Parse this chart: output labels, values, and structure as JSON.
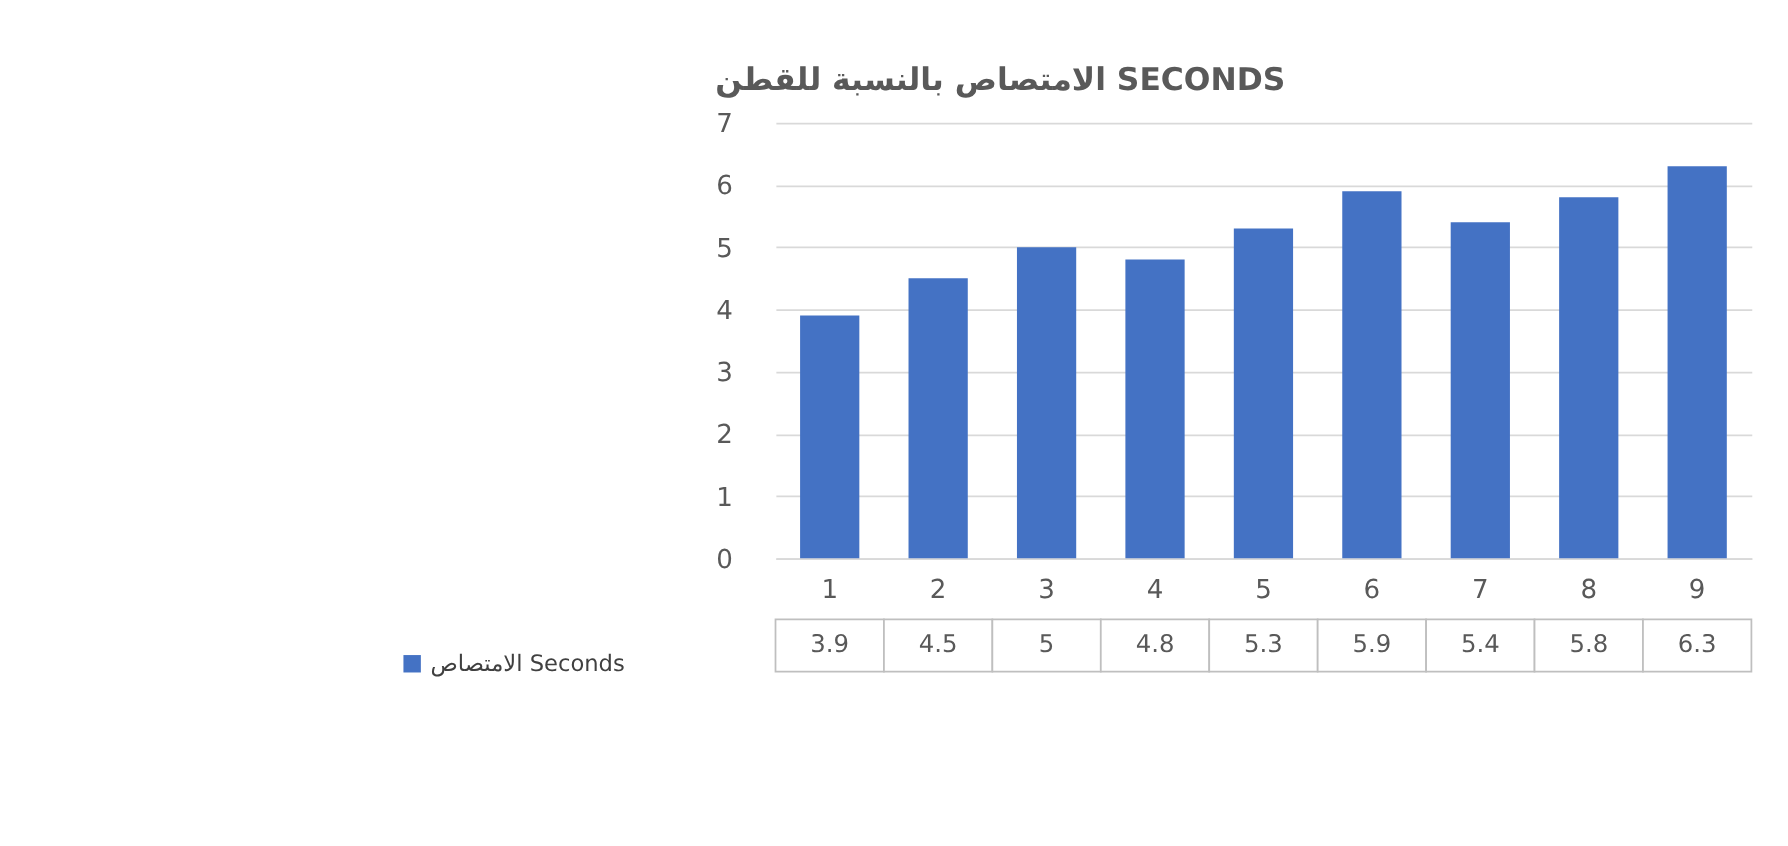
{
  "chart_data": {
    "type": "bar",
    "title": "الامتصاص بالنسبة للقطن SECONDS",
    "categories": [
      "1",
      "2",
      "3",
      "4",
      "5",
      "6",
      "7",
      "8",
      "9"
    ],
    "series": [
      {
        "name": "الامتصاص Seconds",
        "color": "#4472c4",
        "values": [
          3.9,
          4.5,
          5,
          4.8,
          5.3,
          5.9,
          5.4,
          5.8,
          6.3
        ]
      }
    ],
    "ylim": [
      0,
      7
    ],
    "yticks": [
      0,
      1,
      2,
      3,
      4,
      5,
      6,
      7
    ],
    "grid": "y",
    "legend": "bottom left",
    "data_labels": true
  }
}
